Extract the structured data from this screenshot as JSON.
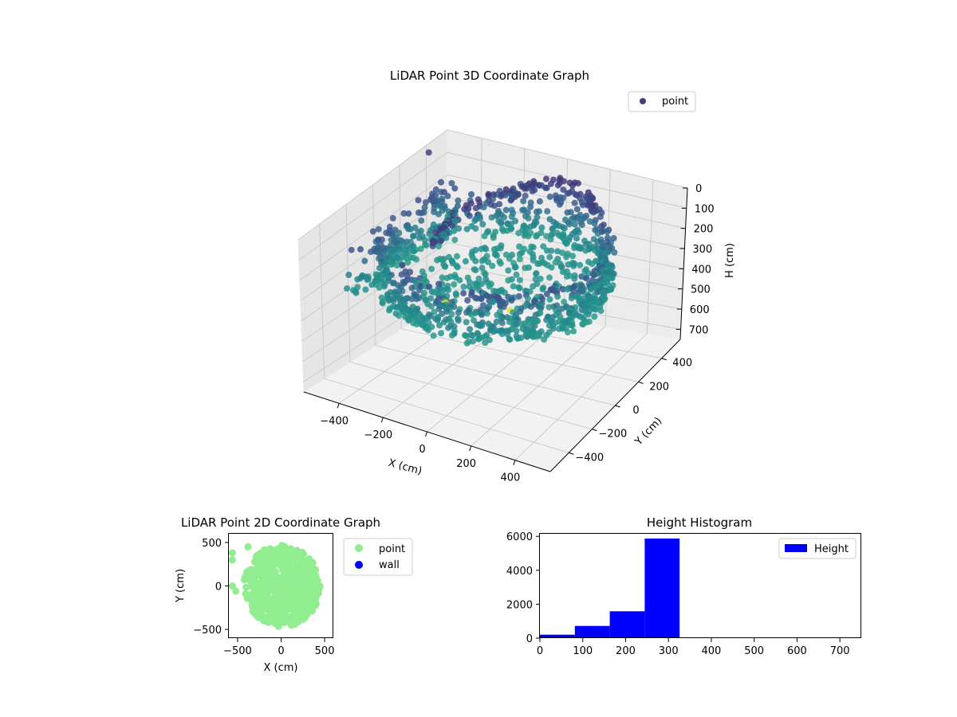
{
  "chart_data": [
    {
      "type": "scatter",
      "projection": "3d",
      "title": "LiDAR Point 3D Coordinate Graph",
      "xlabel": "X (cm)",
      "ylabel": "Y (cm)",
      "zlabel": "H (cm)",
      "xticks": [
        "−400",
        "−200",
        "0",
        "200",
        "400"
      ],
      "yticks": [
        "400",
        "200",
        "0",
        "−200",
        "−400"
      ],
      "zticks": [
        "0",
        "100",
        "200",
        "300",
        "400",
        "500",
        "600",
        "700"
      ],
      "xlim": [
        -560,
        560
      ],
      "ylim": [
        -560,
        560
      ],
      "zlim": [
        0,
        750
      ],
      "z_inverted": true,
      "colormap": "viridis",
      "legend": {
        "placement": "top-right",
        "entries": [
          {
            "name": "point",
            "color": "#433e85"
          }
        ]
      },
      "grid": true,
      "series": [
        {
          "name": "point",
          "description": "points arranged in an oval shell around the origin, radius about 420-480 cm, heights mostly 240-330 cm, plus scattered outliers on the -X side",
          "sample_points": [
            [
              -560,
              420,
              40
            ],
            [
              -430,
              300,
              90
            ],
            [
              -300,
              140,
              160
            ],
            [
              -420,
              -60,
              180
            ],
            [
              -380,
              -120,
              170
            ],
            [
              -480,
              60,
              230
            ]
          ]
        }
      ]
    },
    {
      "type": "scatter",
      "title": "LiDAR Point 2D Coordinate Graph",
      "xlabel": "X (cm)",
      "ylabel": "Y (cm)",
      "xticks": [
        -500,
        0,
        500
      ],
      "yticks": [
        -500,
        0,
        500
      ],
      "xlim": [
        -600,
        600
      ],
      "ylim": [
        -600,
        600
      ],
      "legend": {
        "placement": "outside-right",
        "entries": [
          {
            "name": "point",
            "color": "#90ee90"
          },
          {
            "name": "wall",
            "color": "#0000ff"
          }
        ]
      },
      "series": [
        {
          "name": "point",
          "color": "#90ee90",
          "description": "filled disc of points centred near (0,0), radius about 450-480 cm, with outliers at x about -560 and a notch on the left side",
          "sample_points": [
            [
              -560,
              380
            ],
            [
              -560,
              300
            ],
            [
              -380,
              450
            ],
            [
              -560,
              0
            ],
            [
              -520,
              -60
            ]
          ]
        },
        {
          "name": "wall",
          "color": "#0000ff",
          "points": []
        }
      ]
    },
    {
      "type": "bar",
      "subtype": "histogram",
      "title": "Height Histogram",
      "xticks": [
        0,
        100,
        200,
        300,
        400,
        500,
        600,
        700
      ],
      "yticks": [
        0,
        2000,
        4000,
        6000
      ],
      "xlim": [
        0,
        750
      ],
      "ylim": [
        0,
        6150
      ],
      "legend": {
        "placement": "upper right",
        "entries": [
          {
            "name": "Height",
            "color": "#0000ff"
          }
        ]
      },
      "series": [
        {
          "name": "Height",
          "color": "#0000ff",
          "bin_width": 81.5,
          "bins": [
            {
              "start": 0,
              "end": 81.5,
              "count": 200
            },
            {
              "start": 81.5,
              "end": 163,
              "count": 720
            },
            {
              "start": 163,
              "end": 244.5,
              "count": 1580
            },
            {
              "start": 244.5,
              "end": 326,
              "count": 5870
            },
            {
              "start": 326,
              "end": 407.5,
              "count": 0
            },
            {
              "start": 407.5,
              "end": 489,
              "count": 0
            },
            {
              "start": 489,
              "end": 570.5,
              "count": 0
            },
            {
              "start": 570.5,
              "end": 652,
              "count": 0
            },
            {
              "start": 652,
              "end": 733.5,
              "count": 0
            }
          ]
        }
      ]
    }
  ]
}
